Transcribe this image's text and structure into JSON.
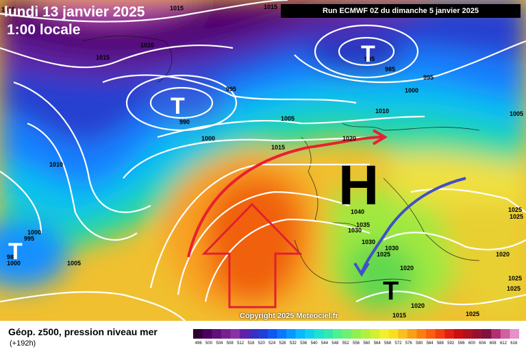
{
  "header": {
    "date": "lundi 13 janvier 2025",
    "time": "1:00 locale",
    "run": "Run ECMWF 0Z du dimanche 5 janvier 2025"
  },
  "copyright": "Copyright 2025 Meteociel.fr",
  "footer": {
    "title": "Géop. z500, pression niveau mer",
    "forecast": "(+192h)"
  },
  "symbols": {
    "high": "H",
    "low": "T"
  },
  "isobar_labels": [
    "1015",
    "1015",
    "1015",
    "1020",
    "1015",
    "995",
    "990",
    "1005",
    "1000",
    "1010",
    "995",
    "1000",
    "985",
    "1000",
    "1005",
    "1020",
    "1015",
    "995",
    "985",
    "995",
    "1000",
    "1010",
    "1005",
    "1025",
    "1020",
    "1025",
    "1040",
    "1035",
    "1030",
    "1030",
    "1030",
    "1025",
    "1020",
    "1015",
    "1025",
    "1025",
    "1020",
    "1025"
  ],
  "colorbar": {
    "colors": [
      "#300030",
      "#4a0060",
      "#60107a",
      "#782090",
      "#8a30a8",
      "#6020a8",
      "#3a30c0",
      "#2040d8",
      "#1058f0",
      "#0878ff",
      "#0898ff",
      "#08b8ff",
      "#10d0f0",
      "#20e0d0",
      "#30e8b0",
      "#50f090",
      "#70f070",
      "#90f050",
      "#b0f040",
      "#d0f030",
      "#f0f030",
      "#f8e020",
      "#f8c020",
      "#f8a018",
      "#f88010",
      "#f86010",
      "#f04010",
      "#e02010",
      "#c81010",
      "#b01020",
      "#981030",
      "#801040",
      "#b03070",
      "#d060a0",
      "#e890c8"
    ],
    "labels": [
      "496",
      "500",
      "504",
      "508",
      "512",
      "516",
      "520",
      "524",
      "528",
      "532",
      "536",
      "540",
      "544",
      "548",
      "552",
      "556",
      "560",
      "564",
      "568",
      "572",
      "576",
      "580",
      "584",
      "588",
      "592",
      "596",
      "600",
      "604",
      "608",
      "612",
      "616"
    ]
  }
}
